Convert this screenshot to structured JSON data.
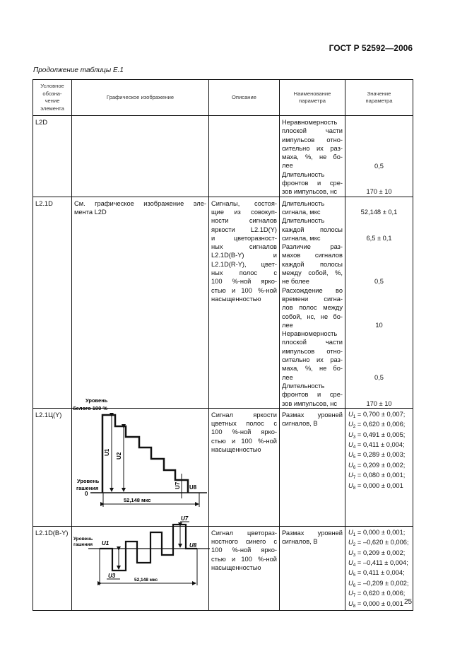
{
  "header": {
    "standard": "ГОСТ Р 52592—2006",
    "continuation": "Продолжение таблицы Е.1",
    "page_number": "25"
  },
  "columns": [
    "Условное обозна-чение элемента",
    "Графическое изображение",
    "Описание",
    "Наименование параметра",
    "Значение параметра"
  ],
  "column_lines": [
    [
      "Условное",
      "обозна-",
      "чение",
      "элемента"
    ],
    [
      "Графическое изображение"
    ],
    [
      "Описание"
    ],
    [
      "Наименование",
      "параметра"
    ],
    [
      "Значение",
      "параметра"
    ]
  ],
  "rows": [
    {
      "code": "L2D",
      "graphic_text": [],
      "description": [],
      "params": [
        {
          "lines": [
            "Неравномерность",
            "плоской части",
            "импульсов отно-",
            "сительно их раз-",
            "маха, %, не бо-",
            "лее"
          ],
          "value": "0,5"
        },
        {
          "lines": [
            "Длительность",
            "фронтов и сре-",
            "зов импульсов, нс"
          ],
          "value": "170 ± 10"
        }
      ]
    },
    {
      "code": "L2.1D",
      "graphic_text": [
        "См. графическое изображение эле-",
        "мента L2D"
      ],
      "description": [
        "Сигналы, состоя-",
        "щие из совокуп-",
        "ности сигналов",
        "яркости L2.1D(Y)",
        "и цветоразност-",
        "ных сигналов",
        "L2.1D(B-Y) и",
        "L2.1D(R-Y), цвет-",
        "ных полос с",
        "100 %-ной ярко-",
        "стью и 100 %-ной",
        "насыщенностью"
      ],
      "params": [
        {
          "lines": [
            "Длительность",
            "сигнала, мкс"
          ],
          "value": "52,148 ± 0,1"
        },
        {
          "lines": [
            "Длительность",
            "каждой полосы",
            "сигнала, мкс"
          ],
          "value": "6,5 ± 0,1"
        },
        {
          "lines": [
            "Различие раз-",
            "махов сигналов",
            "каждой полосы",
            "между собой, %,",
            "не более"
          ],
          "value": "0,5"
        },
        {
          "lines": [
            "Расхождение во",
            "времени сигна-",
            "лов полос между",
            "собой, нс, не бо-",
            "лее"
          ],
          "value": "10"
        },
        {
          "lines": [
            "Неравномерность",
            "плоской части",
            "импульсов отно-",
            "сительно их раз-",
            "маха, %, не бо-",
            "лее"
          ],
          "value": "0,5"
        },
        {
          "lines": [
            "Длительность",
            "фронтов и сре-",
            "зов импульсов, нс"
          ],
          "value": "170 ± 10"
        }
      ]
    },
    {
      "code": "L2.1Ц(Y)",
      "graphic_labels": {
        "white_level": [
          "Уровень",
          "белого 100 %"
        ],
        "blank_level": [
          "Уровень",
          "гашения"
        ],
        "zero": "0",
        "duration": "52,148 мкс",
        "u1": "U1",
        "u2": "U2",
        "u7": "U7",
        "u8": "U8"
      },
      "description": [
        "Сигнал яркости",
        "цветных полос с",
        "100 %-ной ярко-",
        "стью и 100 %-ной",
        "насыщенностью"
      ],
      "param_lines": [
        "Размах уровней",
        "сигналов, В"
      ],
      "u_values": [
        {
          "sub": "1",
          "text": "= 0,700 ± 0,007;"
        },
        {
          "sub": "2",
          "text": "= 0,620 ± 0,006;"
        },
        {
          "sub": "3",
          "text": "= 0,491 ± 0,005;"
        },
        {
          "sub": "4",
          "text": "= 0,411 ± 0,004;"
        },
        {
          "sub": "5",
          "text": "= 0,289 ± 0,003;"
        },
        {
          "sub": "6",
          "text": "= 0,209 ± 0,002;"
        },
        {
          "sub": "7",
          "text": "= 0,080 ± 0,001;"
        },
        {
          "sub": "8",
          "text": "= 0,000 ± 0,001"
        }
      ]
    },
    {
      "code": "L2.1D(B-Y)",
      "graphic_labels": {
        "blank_level": [
          "Уровень",
          "гашения"
        ],
        "duration": "52,148 мкс",
        "u1": "U1",
        "u3": "U3",
        "u7": "U7",
        "u8": "U8"
      },
      "description": [
        "Сигнал цветораз-",
        "ностного синего с",
        "100 %-ной ярко-",
        "стью и 100 %-ной",
        "насыщенностью"
      ],
      "param_lines": [
        "Размах уровней",
        "сигналов, В"
      ],
      "u_values": [
        {
          "sub": "1",
          "text": "= 0,000 ± 0,001;"
        },
        {
          "sub": "2",
          "text": "= –0,620 ± 0,006;"
        },
        {
          "sub": "3",
          "text": "= 0,209 ± 0,002;"
        },
        {
          "sub": "4",
          "text": "= –0,411 ± 0,004;"
        },
        {
          "sub": "5",
          "text": "= 0,411 ± 0,004;"
        },
        {
          "sub": "6",
          "text": "= –0,209 ± 0,002;"
        },
        {
          "sub": "7",
          "text": "= 0,620 ± 0,006;"
        },
        {
          "sub": "8",
          "text": "= 0,000 ± 0,001"
        }
      ]
    }
  ]
}
